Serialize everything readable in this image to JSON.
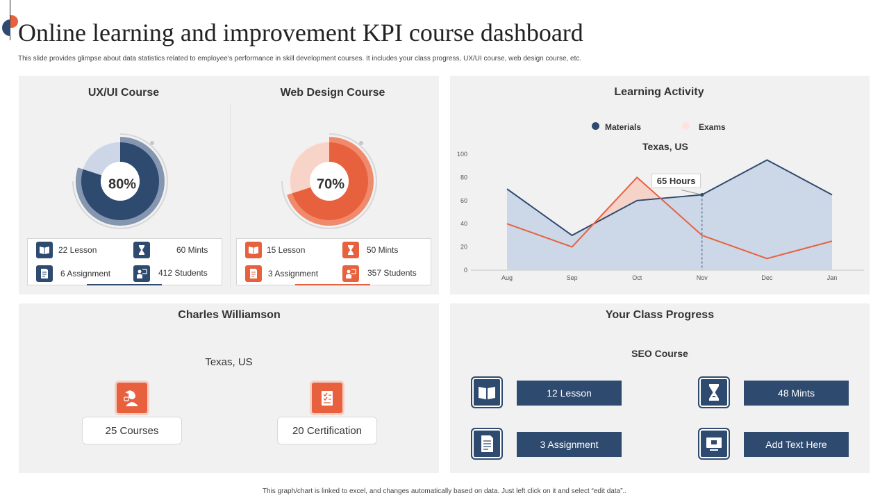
{
  "header": {
    "title": "Online learning and improvement KPI course dashboard",
    "subtitle": "This slide provides glimpse about data statistics related to employee's performance in skill development courses. It includes your class progress, UX/UI course, web design course, etc."
  },
  "colors": {
    "navy": "#2e4a6f",
    "orange": "#e8613f",
    "panel": "#f1f1f1",
    "area": "#ccd7e8"
  },
  "uxui": {
    "title": "UX/UI Course",
    "percent_label": "80%",
    "percent": 0.8,
    "lesson": "22 Lesson",
    "mints": "60 Mints",
    "assignment": "6 Assignment",
    "students": "412 Students"
  },
  "webdesign": {
    "title": "Web Design Course",
    "percent_label": "70%",
    "percent": 0.7,
    "lesson": "15 Lesson",
    "mints": "50 Mints",
    "assignment": "3 Assignment",
    "students": "357 Students"
  },
  "activity": {
    "title": "Learning Activity",
    "legend_materials": "Materials",
    "legend_exams": "Exams",
    "location": "Texas, US",
    "callout": "65 Hours"
  },
  "chart_data": {
    "type": "line",
    "title": "Texas, US",
    "categories": [
      "Aug",
      "Sep",
      "Oct",
      "Nov",
      "Dec",
      "Jan"
    ],
    "series": [
      {
        "name": "Materials",
        "values": [
          70,
          30,
          60,
          65,
          95,
          65
        ],
        "color": "#2e4a6f",
        "fill": "area"
      },
      {
        "name": "Exams",
        "values": [
          40,
          20,
          80,
          30,
          10,
          25
        ],
        "color": "#e8613f"
      }
    ],
    "ylim": [
      0,
      100
    ],
    "yticks": [
      "0",
      "20",
      "40",
      "60",
      "80",
      "100"
    ],
    "annotation": {
      "category": "Nov",
      "series": "Materials",
      "text": "65 Hours"
    },
    "legend": "top"
  },
  "profile": {
    "name": "Charles Williamson",
    "location": "Texas, US",
    "courses": "25 Courses",
    "certification": "20 Certification"
  },
  "progress": {
    "title": "Your Class Progress",
    "course": "SEO Course",
    "lesson": "12 Lesson",
    "mints": "48 Mints",
    "assignment": "3 Assignment",
    "extra": "Add Text Here"
  },
  "footer": "This graph/chart is linked to excel, and changes automatically based on data. Just left click on it and select “edit data”.."
}
